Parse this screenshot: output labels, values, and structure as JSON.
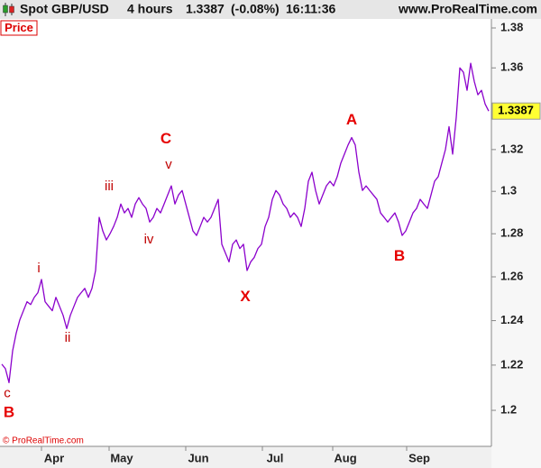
{
  "chart_data": {
    "type": "line",
    "instrument": "Spot GBP/USD",
    "timeframe": "4 hours",
    "last_value": 1.3387,
    "change": "(-0.08%)",
    "time": "16:11:36",
    "source": "www.ProRealTime.com",
    "panel_label": "Price",
    "copyright": "© ProRealTime.com",
    "log_scale": true,
    "grid": false,
    "series": [
      {
        "name": "Price",
        "color": "#8b00cc",
        "values": [
          1.2204,
          1.2184,
          1.2122,
          1.2264,
          1.2344,
          1.2404,
          1.2445,
          1.2486,
          1.2473,
          1.2506,
          1.2527,
          1.2588,
          1.2486,
          1.2465,
          1.2445,
          1.2506,
          1.2465,
          1.2424,
          1.2364,
          1.2424,
          1.2465,
          1.2506,
          1.2527,
          1.2547,
          1.2506,
          1.2547,
          1.2629,
          1.2877,
          1.2813,
          1.2771,
          1.28,
          1.2834,
          1.2877,
          1.294,
          1.2898,
          1.2919,
          1.2877,
          1.294,
          1.297,
          1.294,
          1.2919,
          1.2855,
          1.2877,
          1.2919,
          1.2898,
          1.294,
          1.2983,
          1.3026,
          1.294,
          1.2983,
          1.3004,
          1.294,
          1.2877,
          1.2813,
          1.2792,
          1.2834,
          1.2877,
          1.2855,
          1.2877,
          1.2919,
          1.2962,
          1.2751,
          1.271,
          1.2669,
          1.2751,
          1.2771,
          1.2731,
          1.2751,
          1.2629,
          1.2669,
          1.269,
          1.2731,
          1.2751,
          1.2834,
          1.2877,
          1.2962,
          1.3004,
          1.2983,
          1.294,
          1.2919,
          1.2877,
          1.2898,
          1.2877,
          1.2834,
          1.2919,
          1.3048,
          1.3091,
          1.3004,
          1.294,
          1.2983,
          1.3026,
          1.3048,
          1.3026,
          1.307,
          1.3135,
          1.3178,
          1.3222,
          1.3258,
          1.3222,
          1.3091,
          1.3004,
          1.3026,
          1.3004,
          1.2983,
          1.2962,
          1.2898,
          1.2877,
          1.2855,
          1.2877,
          1.2898,
          1.2855,
          1.2792,
          1.2813,
          1.2855,
          1.2898,
          1.2919,
          1.2962,
          1.294,
          1.2919,
          1.2983,
          1.3048,
          1.307,
          1.3135,
          1.32,
          1.3311,
          1.3178,
          1.3356,
          1.36,
          1.3578,
          1.3489,
          1.3623,
          1.3533,
          1.3467,
          1.3489,
          1.3422,
          1.3387
        ]
      }
    ],
    "xlim": [
      0,
      136
    ],
    "xticks": [
      {
        "value": 15,
        "label": "Apr"
      },
      {
        "value": 33.75,
        "label": "May"
      },
      {
        "value": 55,
        "label": "Jun"
      },
      {
        "value": 76.25,
        "label": "Jul"
      },
      {
        "value": 95.75,
        "label": "Aug"
      },
      {
        "value": 116.25,
        "label": "Sep"
      }
    ],
    "ylim": [
      1.1843,
      1.3841
    ],
    "yticks": [
      1.2,
      1.22,
      1.24,
      1.26,
      1.28,
      1.3,
      1.32,
      1.36,
      1.38
    ],
    "annotations": [
      {
        "text": "c",
        "x": 2,
        "y": 1.2073,
        "size": "small"
      },
      {
        "text": "B",
        "x": 2.5,
        "y": 1.1988,
        "size": "large"
      },
      {
        "text": "i",
        "x": 10.75,
        "y": 1.2637,
        "size": "small"
      },
      {
        "text": "ii",
        "x": 18.75,
        "y": 1.232,
        "size": "small"
      },
      {
        "text": "iii",
        "x": 30.25,
        "y": 1.3022,
        "size": "small"
      },
      {
        "text": "iv",
        "x": 41.25,
        "y": 1.2771,
        "size": "small"
      },
      {
        "text": "v",
        "x": 46.75,
        "y": 1.3126,
        "size": "small"
      },
      {
        "text": "C",
        "x": 46,
        "y": 1.3249,
        "size": "large"
      },
      {
        "text": "X",
        "x": 68,
        "y": 1.2506,
        "size": "large"
      },
      {
        "text": "A",
        "x": 97.5,
        "y": 1.3342,
        "size": "large"
      },
      {
        "text": "B",
        "x": 110.75,
        "y": 1.2693,
        "size": "large"
      }
    ]
  }
}
